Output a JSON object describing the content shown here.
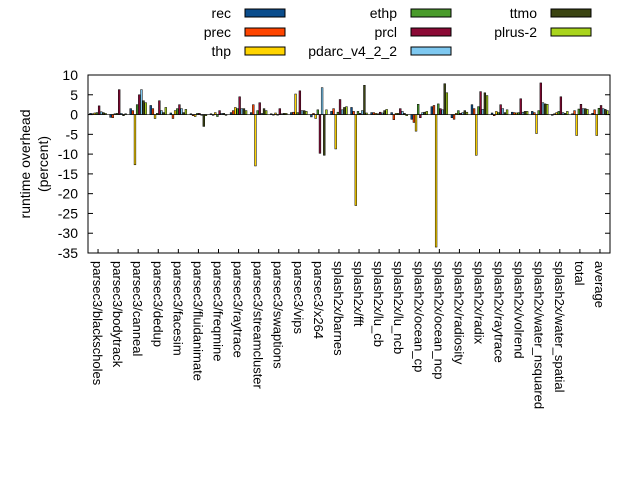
{
  "chart_data": {
    "type": "bar",
    "title": "",
    "xlabel": "",
    "ylabel_lines": [
      "runtime overhead",
      "(percent)"
    ],
    "ylim": [
      -35,
      10
    ],
    "yticks": [
      10,
      5,
      0,
      -5,
      -10,
      -15,
      -20,
      -25,
      -30,
      -35
    ],
    "legend_position": "top",
    "categories": [
      "parsec3/blackscholes",
      "parsec3/bodytrack",
      "parsec3/canneal",
      "parsec3/dedup",
      "parsec3/facesim",
      "parsec3/fluidanimate",
      "parsec3/freqmine",
      "parsec3/raytrace",
      "parsec3/streamcluster",
      "parsec3/swaptions",
      "parsec3/vips",
      "parsec3/x264",
      "splash2x/barnes",
      "splash2x/fft",
      "splash2x/lu_cb",
      "splash2x/lu_ncb",
      "splash2x/ocean_cp",
      "splash2x/ocean_ncp",
      "splash2x/radiosity",
      "splash2x/radix",
      "splash2x/raytrace",
      "splash2x/volrend",
      "splash2x/water_nsquared",
      "splash2x/water_spatial",
      "total",
      "average"
    ],
    "series": [
      {
        "name": "rec",
        "color": "#0b4d8c",
        "values": [
          0.3,
          -0.7,
          1.5,
          2.3,
          0.4,
          0.2,
          0.2,
          0.5,
          0.5,
          0.2,
          0.5,
          -0.6,
          0.8,
          1.8,
          0.5,
          0.5,
          -1.2,
          2.0,
          -0.8,
          2.5,
          0.4,
          0.6,
          0.8,
          -0.2,
          0.2,
          0.3
        ]
      },
      {
        "name": "prec",
        "color": "#ff4500",
        "values": [
          0.2,
          -0.8,
          1.0,
          1.5,
          -1.0,
          -0.3,
          -0.2,
          1.0,
          2.5,
          0.0,
          0.6,
          0.3,
          1.5,
          0.8,
          0.5,
          -1.3,
          -2.0,
          2.3,
          -1.2,
          1.5,
          -0.3,
          0.5,
          0.5,
          0.2,
          1.0,
          1.2
        ]
      },
      {
        "name": "thp",
        "color": "#ffd400",
        "values": [
          0.4,
          0.2,
          -12.7,
          -1.0,
          1.0,
          -0.5,
          0.5,
          1.8,
          -13.0,
          0.4,
          5.2,
          -1.0,
          -8.7,
          -23.0,
          0.3,
          0.3,
          -4.2,
          -33.5,
          0.3,
          -10.3,
          0.8,
          0.4,
          -4.8,
          0.5,
          -5.3,
          -5.3
        ]
      },
      {
        "name": "ethp",
        "color": "#4a9b2b",
        "values": [
          0.5,
          0.3,
          2.5,
          0.3,
          1.5,
          0.3,
          -0.5,
          1.5,
          1.0,
          0.0,
          0.5,
          1.2,
          0.6,
          0.8,
          0.2,
          0.3,
          2.6,
          2.7,
          1.0,
          2.0,
          0.5,
          0.5,
          1.0,
          0.8,
          1.4,
          1.6
        ]
      },
      {
        "name": "prcl",
        "color": "#8b0a36",
        "values": [
          2.2,
          6.3,
          5.0,
          3.5,
          2.5,
          0.3,
          1.0,
          4.5,
          3.0,
          1.5,
          6.0,
          -9.8,
          3.8,
          0.3,
          0.6,
          1.5,
          -0.8,
          1.5,
          0.3,
          5.8,
          2.5,
          4.0,
          8.0,
          4.5,
          2.6,
          2.3
        ]
      },
      {
        "name": "pdarc_v4_2_2",
        "color": "#7ec8f0",
        "values": [
          0.7,
          0.3,
          6.3,
          1.0,
          1.5,
          -0.2,
          0.3,
          1.5,
          0.3,
          0.2,
          1.0,
          6.8,
          1.2,
          1.0,
          0.4,
          0.8,
          0.5,
          1.2,
          0.5,
          1.3,
          1.5,
          0.6,
          3.0,
          0.5,
          1.5,
          1.5
        ]
      },
      {
        "name": "ttmo",
        "color": "#3b4412",
        "values": [
          0.5,
          -0.3,
          3.5,
          0.5,
          0.5,
          -3.0,
          0.3,
          1.5,
          1.5,
          0.3,
          1.0,
          -10.3,
          1.8,
          7.4,
          1.0,
          0.3,
          0.6,
          7.8,
          1.0,
          5.5,
          0.5,
          0.8,
          2.7,
          0.3,
          1.5,
          1.3
        ]
      },
      {
        "name": "plrus-2",
        "color": "#a9d41c",
        "values": [
          0.3,
          0.2,
          3.0,
          1.8,
          1.3,
          -0.3,
          -0.2,
          1.0,
          1.0,
          0.3,
          0.8,
          1.2,
          2.0,
          0.4,
          1.3,
          -0.3,
          0.8,
          5.5,
          0.6,
          4.8,
          1.2,
          0.8,
          2.6,
          0.8,
          1.3,
          1.0
        ]
      }
    ]
  }
}
